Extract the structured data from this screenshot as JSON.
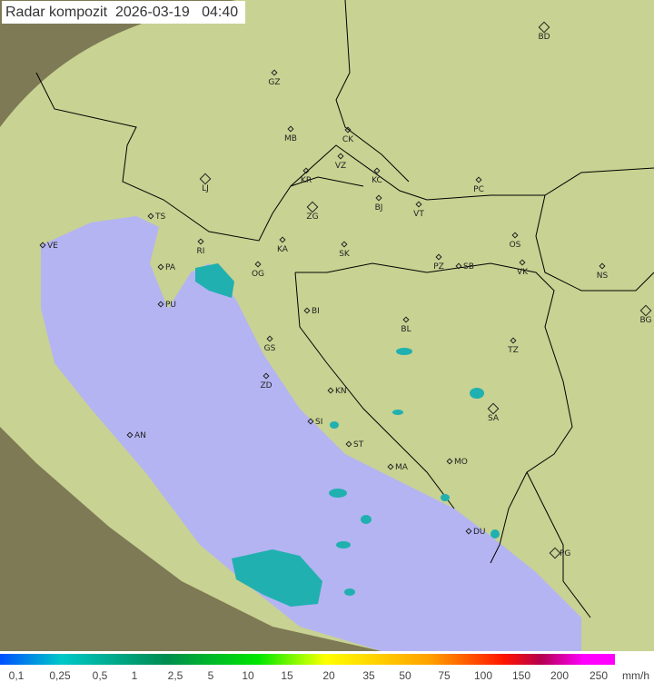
{
  "title": "Radar kompozit  2026-03-19   04:40",
  "colors": {
    "land": "#c9d38f",
    "sea": "#b4b4f0",
    "outside": "#8a8a60",
    "border": "#000000",
    "echo": "#20b0b0"
  },
  "cities": [
    "BD",
    "GZ",
    "MB",
    "CK",
    "VZ",
    "KR",
    "KC",
    "LJ",
    "ZG",
    "BJ",
    "VT",
    "PC",
    "TS",
    "VE",
    "RI",
    "PA",
    "KA",
    "SK",
    "PZ",
    "SB",
    "OS",
    "VK",
    "NS",
    "OG",
    "PU",
    "BI",
    "BL",
    "BG",
    "GS",
    "TZ",
    "ZD",
    "KN",
    "SA",
    "SI",
    "AN",
    "ST",
    "MO",
    "MA",
    "DU",
    "PG"
  ],
  "legend": {
    "ticks": [
      "0,1",
      "0,25",
      "0,5",
      "1",
      "2,5",
      "5",
      "10",
      "15",
      "20",
      "35",
      "50",
      "75",
      "100",
      "150",
      "200",
      "250"
    ],
    "unit": "mm/h"
  }
}
